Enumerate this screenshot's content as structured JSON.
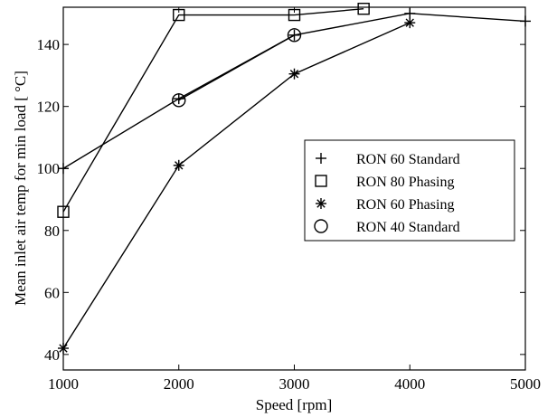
{
  "chart_data": {
    "type": "line",
    "title": "",
    "xlabel": "Speed [rpm]",
    "ylabel": "Mean inlet air temp for min load [  °C]",
    "xlim": [
      1000,
      5000
    ],
    "ylim": [
      35,
      152
    ],
    "xticks": [
      1000,
      2000,
      3000,
      4000,
      5000
    ],
    "yticks": [
      40,
      60,
      80,
      100,
      120,
      140
    ],
    "grid": false,
    "legend_position": "center-right",
    "series": [
      {
        "name": "RON 60 Standard",
        "marker": "plus",
        "x": [
          1000,
          2000,
          3000,
          4000,
          5000
        ],
        "y": [
          100,
          122.5,
          143,
          150,
          147.5
        ]
      },
      {
        "name": "RON 80 Phasing",
        "marker": "square",
        "x": [
          1000,
          2000,
          3000,
          3600
        ],
        "y": [
          86,
          149.5,
          149.5,
          151.5
        ]
      },
      {
        "name": "RON 60 Phasing",
        "marker": "asterisk",
        "x": [
          1000,
          2000,
          3000,
          4000
        ],
        "y": [
          42,
          101,
          130.5,
          147
        ]
      },
      {
        "name": "RON 40 Standard",
        "marker": "circle",
        "x": [
          2000,
          3000
        ],
        "y": [
          122,
          143
        ]
      }
    ],
    "colors": {
      "line": "#000000",
      "background": "#ffffff"
    }
  }
}
